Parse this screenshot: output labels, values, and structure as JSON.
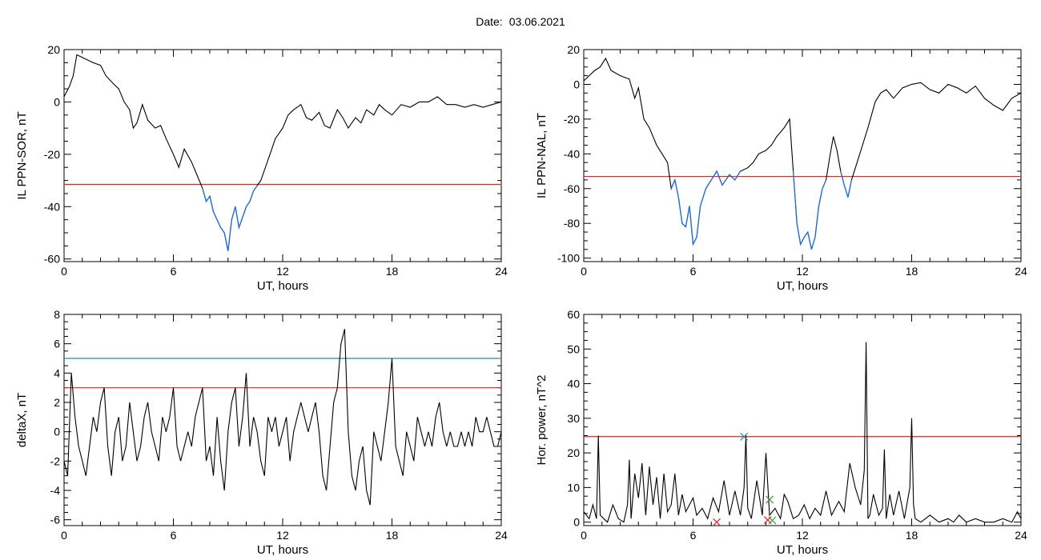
{
  "header": {
    "date_label": "Date:",
    "date_value": "03.06.2021"
  },
  "colors": {
    "trace": "#000000",
    "highlight": "#1f6fd6",
    "threshold_red": "#e8231c",
    "threshold_teal": "#1a8fb0",
    "marker_green": "#2ca02c",
    "background": "#ffffff"
  },
  "chart_data": [
    {
      "id": "sor",
      "type": "line",
      "xlabel": "UT, hours",
      "ylabel": "IL PPN-SOR, nT",
      "xlim": [
        0,
        24
      ],
      "ylim": [
        -61,
        20
      ],
      "xticks": [
        0,
        6,
        12,
        18,
        24
      ],
      "yticks": [
        -60,
        -40,
        -20,
        0,
        20
      ],
      "thresholds": [
        {
          "value": -31.5,
          "color": "red"
        }
      ],
      "highlight_below": -31.5,
      "series": [
        {
          "x": [
            0,
            0.3,
            0.5,
            0.7,
            1.0,
            1.3,
            1.6,
            2.0,
            2.3,
            2.7,
            3.0,
            3.3,
            3.6,
            3.8,
            4.0,
            4.3,
            4.6,
            5.0,
            5.3,
            5.6,
            6.0,
            6.3,
            6.6,
            7.0,
            7.3,
            7.6,
            7.8,
            8.0,
            8.2,
            8.4,
            8.6,
            8.8,
            9.0,
            9.2,
            9.4,
            9.6,
            9.8,
            10.0,
            10.2,
            10.4,
            10.6,
            10.8,
            11.0,
            11.3,
            11.6,
            12.0,
            12.3,
            12.6,
            13.0,
            13.3,
            13.6,
            14.0,
            14.3,
            14.6,
            15.0,
            15.3,
            15.6,
            16.0,
            16.3,
            16.6,
            17.0,
            17.3,
            17.6,
            18.0,
            18.5,
            19.0,
            19.5,
            20.0,
            20.5,
            21.0,
            21.5,
            22.0,
            22.5,
            23.0,
            23.5,
            24.0
          ],
          "y": [
            2,
            6,
            10,
            18,
            17,
            16,
            15,
            14,
            10,
            7,
            5,
            0,
            -3,
            -10,
            -8,
            -1,
            -7,
            -10,
            -9,
            -14,
            -20,
            -25,
            -18,
            -23,
            -28,
            -33,
            -38,
            -36,
            -42,
            -45,
            -48,
            -50,
            -57,
            -45,
            -40,
            -48,
            -44,
            -40,
            -38,
            -34,
            -32,
            -30,
            -26,
            -20,
            -14,
            -10,
            -5,
            -3,
            -1,
            -6,
            -7,
            -4,
            -9,
            -10,
            -3,
            -6,
            -10,
            -6,
            -8,
            -3,
            -5,
            -1,
            -3,
            -5,
            -1,
            -2,
            0,
            0,
            2,
            -1,
            -1,
            -2,
            -1,
            -2,
            -1,
            0
          ]
        }
      ]
    },
    {
      "id": "nal",
      "type": "line",
      "xlabel": "UT, hours",
      "ylabel": "IL PPN-NAL, nT",
      "xlim": [
        0,
        24
      ],
      "ylim": [
        -102,
        20
      ],
      "xticks": [
        0,
        6,
        12,
        18,
        24
      ],
      "yticks": [
        -100,
        -80,
        -60,
        -40,
        -20,
        0,
        20
      ],
      "thresholds": [
        {
          "value": -53,
          "color": "red"
        }
      ],
      "highlight_below": -50,
      "series": [
        {
          "x": [
            0,
            0.3,
            0.6,
            0.9,
            1.2,
            1.5,
            2.0,
            2.5,
            2.8,
            3.0,
            3.3,
            3.6,
            4.0,
            4.3,
            4.6,
            4.8,
            5.0,
            5.2,
            5.4,
            5.6,
            5.8,
            6.0,
            6.2,
            6.4,
            6.7,
            7.0,
            7.3,
            7.6,
            8.0,
            8.3,
            8.6,
            9.0,
            9.3,
            9.6,
            10.0,
            10.3,
            10.6,
            11.0,
            11.3,
            11.5,
            11.7,
            11.9,
            12.1,
            12.3,
            12.5,
            12.7,
            12.9,
            13.1,
            13.3,
            13.5,
            13.7,
            13.9,
            14.1,
            14.3,
            14.5,
            14.7,
            15.0,
            15.3,
            15.6,
            16.0,
            16.3,
            16.6,
            17.0,
            17.5,
            18.0,
            18.5,
            19.0,
            19.5,
            20.0,
            20.5,
            21.0,
            21.5,
            22.0,
            22.5,
            23.0,
            23.5,
            24.0
          ],
          "y": [
            2,
            5,
            8,
            10,
            15,
            8,
            5,
            3,
            -8,
            -2,
            -20,
            -25,
            -35,
            -40,
            -45,
            -60,
            -55,
            -65,
            -80,
            -82,
            -70,
            -92,
            -88,
            -70,
            -60,
            -55,
            -50,
            -58,
            -52,
            -55,
            -50,
            -48,
            -45,
            -40,
            -38,
            -35,
            -30,
            -25,
            -20,
            -50,
            -80,
            -92,
            -88,
            -85,
            -95,
            -88,
            -70,
            -60,
            -55,
            -42,
            -30,
            -38,
            -50,
            -58,
            -65,
            -55,
            -45,
            -35,
            -25,
            -10,
            -5,
            -3,
            -8,
            -2,
            0,
            1,
            -3,
            -5,
            0,
            -2,
            -5,
            -1,
            -8,
            -12,
            -15,
            -8,
            -5
          ]
        }
      ]
    },
    {
      "id": "deltax",
      "type": "line",
      "xlabel": "UT, hours",
      "ylabel": "deltaX, nT",
      "xlim": [
        0,
        24
      ],
      "ylim": [
        -6.4,
        8
      ],
      "xticks": [
        0,
        6,
        12,
        18,
        24
      ],
      "yticks": [
        -6,
        -4,
        -2,
        0,
        2,
        4,
        6,
        8
      ],
      "thresholds": [
        {
          "value": 5,
          "color": "teal"
        },
        {
          "value": 3,
          "color": "red"
        }
      ],
      "series": [
        {
          "x": [
            0,
            0.2,
            0.4,
            0.6,
            0.8,
            1.0,
            1.2,
            1.4,
            1.6,
            1.8,
            2.0,
            2.2,
            2.4,
            2.6,
            2.8,
            3.0,
            3.2,
            3.4,
            3.6,
            3.8,
            4.0,
            4.2,
            4.4,
            4.6,
            4.8,
            5.0,
            5.2,
            5.4,
            5.6,
            5.8,
            6.0,
            6.2,
            6.4,
            6.6,
            6.8,
            7.0,
            7.2,
            7.4,
            7.6,
            7.8,
            8.0,
            8.2,
            8.4,
            8.6,
            8.8,
            9.0,
            9.2,
            9.4,
            9.6,
            9.8,
            10.0,
            10.2,
            10.4,
            10.6,
            10.8,
            11.0,
            11.2,
            11.4,
            11.6,
            11.8,
            12.0,
            12.2,
            12.4,
            12.6,
            12.8,
            13.0,
            13.2,
            13.4,
            13.6,
            13.8,
            14.0,
            14.2,
            14.4,
            14.6,
            14.8,
            15.0,
            15.2,
            15.4,
            15.6,
            15.8,
            16.0,
            16.2,
            16.4,
            16.6,
            16.8,
            17.0,
            17.2,
            17.4,
            17.6,
            17.8,
            18.0,
            18.2,
            18.4,
            18.6,
            18.8,
            19.0,
            19.2,
            19.4,
            19.6,
            19.8,
            20.0,
            20.2,
            20.4,
            20.6,
            20.8,
            21.0,
            21.2,
            21.4,
            21.6,
            21.8,
            22.0,
            22.2,
            22.4,
            22.6,
            22.8,
            23.0,
            23.2,
            23.4,
            23.6,
            23.8,
            24.0
          ],
          "y": [
            -2,
            -3,
            4,
            1,
            -1,
            -2,
            -3,
            -1,
            1,
            0,
            2,
            3,
            -1,
            -3,
            0,
            1,
            -2,
            -1,
            2,
            0,
            -2,
            -1,
            1,
            2,
            0,
            -1,
            -2,
            1,
            0,
            1,
            3,
            -1,
            -2,
            -1,
            0,
            -1,
            1,
            2,
            3,
            -2,
            -1,
            -3,
            1,
            -2,
            -4,
            0,
            2,
            3,
            -1,
            1,
            4,
            -1,
            1,
            0,
            -2,
            -3,
            1,
            0,
            1,
            -1,
            0,
            1,
            -2,
            0,
            1,
            2,
            1,
            0,
            1,
            2,
            0,
            -3,
            -4,
            -1,
            2,
            3,
            6,
            7,
            0,
            -3,
            -4,
            -2,
            -1,
            -4,
            -5,
            0,
            -1,
            -2,
            0,
            2,
            5,
            -1,
            -2,
            -3,
            0,
            -1,
            -2,
            1,
            0,
            -1,
            0,
            -1,
            1,
            2,
            0,
            -1,
            0,
            -1,
            -1,
            0,
            -1,
            0,
            -1,
            1,
            0,
            0,
            1,
            0,
            -1,
            -1,
            0
          ]
        }
      ]
    },
    {
      "id": "power",
      "type": "line",
      "xlabel": "UT, hours",
      "ylabel": "Hor. power, nT^2",
      "xlim": [
        0,
        24
      ],
      "ylim": [
        -1,
        60
      ],
      "xticks": [
        0,
        6,
        12,
        18,
        24
      ],
      "yticks": [
        0,
        10,
        20,
        30,
        40,
        50,
        60
      ],
      "thresholds": [
        {
          "value": 24.7,
          "color": "red"
        }
      ],
      "series": [
        {
          "x": [
            0,
            0.3,
            0.5,
            0.7,
            0.8,
            0.9,
            1.1,
            1.3,
            1.6,
            1.9,
            2.2,
            2.4,
            2.5,
            2.6,
            2.8,
            3.0,
            3.2,
            3.4,
            3.6,
            3.8,
            4.0,
            4.2,
            4.4,
            4.6,
            4.8,
            5.0,
            5.2,
            5.4,
            5.6,
            5.8,
            6.0,
            6.2,
            6.5,
            6.8,
            7.1,
            7.4,
            7.7,
            8.0,
            8.3,
            8.6,
            8.8,
            8.9,
            9.0,
            9.2,
            9.5,
            9.8,
            10.0,
            10.2,
            10.5,
            10.8,
            11.0,
            11.2,
            11.5,
            11.8,
            12.1,
            12.4,
            12.7,
            13.0,
            13.3,
            13.6,
            14.0,
            14.3,
            14.6,
            14.9,
            15.2,
            15.4,
            15.5,
            15.6,
            15.7,
            15.9,
            16.2,
            16.4,
            16.5,
            16.6,
            16.8,
            17.0,
            17.3,
            17.6,
            17.9,
            18.0,
            18.1,
            18.2,
            18.5,
            19.0,
            19.5,
            20.0,
            20.3,
            20.6,
            21.0,
            21.5,
            22.0,
            22.5,
            23.0,
            23.5,
            23.8,
            24.0
          ],
          "y": [
            3,
            1,
            5,
            1,
            25,
            2,
            1,
            0,
            5,
            1,
            0,
            5,
            18,
            1,
            14,
            7,
            17,
            2,
            16,
            5,
            13,
            1,
            14,
            3,
            5,
            14,
            2,
            8,
            3,
            5,
            7,
            2,
            4,
            1,
            7,
            3,
            12,
            2,
            9,
            2,
            10,
            25,
            4,
            1,
            12,
            2,
            20,
            2,
            4,
            1,
            8,
            6,
            1,
            2,
            5,
            1,
            4,
            2,
            9,
            2,
            6,
            3,
            17,
            10,
            5,
            15,
            52,
            1,
            2,
            8,
            2,
            4,
            21,
            1,
            8,
            2,
            9,
            1,
            10,
            30,
            5,
            1,
            0,
            2,
            0,
            1,
            0,
            2,
            0,
            1,
            0,
            0,
            1,
            0,
            3,
            1
          ]
        }
      ],
      "markers": [
        {
          "x": 8.8,
          "y": 24.7,
          "shape": "x",
          "color": "teal"
        },
        {
          "x": 10.2,
          "y": 6.5,
          "shape": "x",
          "color": "green"
        },
        {
          "x": 10.35,
          "y": 0.5,
          "shape": "x",
          "color": "green"
        },
        {
          "x": 7.3,
          "y": 0,
          "shape": "x",
          "color": "red"
        },
        {
          "x": 10.1,
          "y": 0.6,
          "shape": "x",
          "color": "red"
        }
      ]
    }
  ]
}
